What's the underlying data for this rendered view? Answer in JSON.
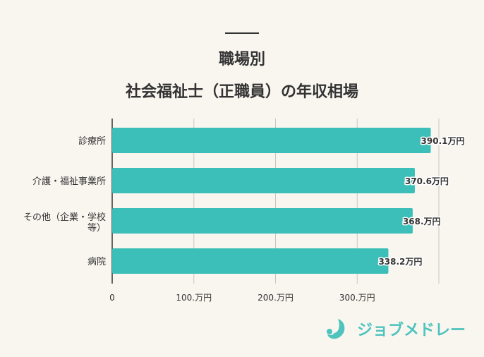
{
  "header": {
    "title_line1": "職場別",
    "title_line2": "社会福祉士（正職員）の年収相場"
  },
  "logo": {
    "text": "ジョブメドレー"
  },
  "colors": {
    "bar": "#3bbfb8",
    "background": "#f9f6f0",
    "grid": "#c8c6c2"
  },
  "chart_data": {
    "type": "bar",
    "orientation": "horizontal",
    "title": "職場別 社会福祉士（正職員）の年収相場",
    "categories": [
      "診療所",
      "介護・福祉事業所",
      "その他（企業・学校等）",
      "病院"
    ],
    "values": [
      390.1,
      370.6,
      368,
      338.2
    ],
    "data_labels": [
      "390.1万円",
      "370.6万円",
      "368.万円",
      "338.2万円"
    ],
    "xlim": [
      0,
      400
    ],
    "ticks": [
      0,
      100,
      200,
      300,
      400
    ],
    "tick_labels": [
      "0",
      "100.万円",
      "200.万円",
      "300.万円",
      ""
    ],
    "grid": true
  }
}
